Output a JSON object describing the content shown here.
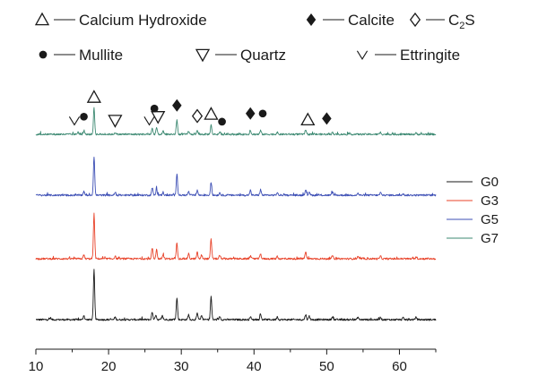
{
  "chart_data": {
    "type": "line",
    "title": "",
    "xlabel": "",
    "ylabel": "",
    "xlim": [
      10,
      65
    ],
    "x_ticks": [
      10,
      20,
      30,
      40,
      50,
      60
    ],
    "grid": false,
    "legend_placement": "right",
    "series": [
      {
        "name": "G0",
        "color": "#1a1a1a",
        "baseline": 0.0,
        "noise": 0.014,
        "peaks": [
          {
            "x": 12.0,
            "h": 0.03
          },
          {
            "x": 16.6,
            "h": 0.07
          },
          {
            "x": 18.0,
            "h": 0.8
          },
          {
            "x": 20.9,
            "h": 0.04
          },
          {
            "x": 26.0,
            "h": 0.12
          },
          {
            "x": 26.5,
            "h": 0.08
          },
          {
            "x": 27.4,
            "h": 0.06
          },
          {
            "x": 29.4,
            "h": 0.35
          },
          {
            "x": 31.0,
            "h": 0.08
          },
          {
            "x": 32.2,
            "h": 0.1
          },
          {
            "x": 32.8,
            "h": 0.07
          },
          {
            "x": 34.1,
            "h": 0.37
          },
          {
            "x": 35.3,
            "h": 0.05
          },
          {
            "x": 39.5,
            "h": 0.05
          },
          {
            "x": 40.9,
            "h": 0.08
          },
          {
            "x": 43.2,
            "h": 0.05
          },
          {
            "x": 47.1,
            "h": 0.08
          },
          {
            "x": 47.6,
            "h": 0.06
          },
          {
            "x": 50.8,
            "h": 0.05
          },
          {
            "x": 54.3,
            "h": 0.04
          },
          {
            "x": 57.4,
            "h": 0.04
          },
          {
            "x": 60.5,
            "h": 0.03
          },
          {
            "x": 62.3,
            "h": 0.04
          }
        ]
      },
      {
        "name": "G3",
        "color": "#e8432a",
        "baseline": 1.0,
        "noise": 0.014,
        "peaks": [
          {
            "x": 16.6,
            "h": 0.06
          },
          {
            "x": 18.0,
            "h": 0.72
          },
          {
            "x": 20.9,
            "h": 0.04
          },
          {
            "x": 26.0,
            "h": 0.17
          },
          {
            "x": 26.6,
            "h": 0.15
          },
          {
            "x": 27.5,
            "h": 0.07
          },
          {
            "x": 29.4,
            "h": 0.26
          },
          {
            "x": 31.0,
            "h": 0.08
          },
          {
            "x": 32.2,
            "h": 0.1
          },
          {
            "x": 32.8,
            "h": 0.06
          },
          {
            "x": 34.1,
            "h": 0.31
          },
          {
            "x": 35.3,
            "h": 0.05
          },
          {
            "x": 39.5,
            "h": 0.05
          },
          {
            "x": 40.9,
            "h": 0.08
          },
          {
            "x": 43.2,
            "h": 0.04
          },
          {
            "x": 47.1,
            "h": 0.11
          },
          {
            "x": 50.8,
            "h": 0.05
          },
          {
            "x": 54.3,
            "h": 0.03
          },
          {
            "x": 57.4,
            "h": 0.04
          },
          {
            "x": 62.3,
            "h": 0.03
          }
        ]
      },
      {
        "name": "G5",
        "color": "#3d4fb5",
        "baseline": 2.0,
        "noise": 0.014,
        "peaks": [
          {
            "x": 16.6,
            "h": 0.06
          },
          {
            "x": 18.0,
            "h": 0.62
          },
          {
            "x": 20.9,
            "h": 0.04
          },
          {
            "x": 26.0,
            "h": 0.12
          },
          {
            "x": 26.6,
            "h": 0.1
          },
          {
            "x": 27.5,
            "h": 0.05
          },
          {
            "x": 29.4,
            "h": 0.35
          },
          {
            "x": 31.0,
            "h": 0.06
          },
          {
            "x": 32.2,
            "h": 0.08
          },
          {
            "x": 34.1,
            "h": 0.2
          },
          {
            "x": 35.3,
            "h": 0.04
          },
          {
            "x": 39.5,
            "h": 0.08
          },
          {
            "x": 40.9,
            "h": 0.09
          },
          {
            "x": 43.2,
            "h": 0.04
          },
          {
            "x": 47.1,
            "h": 0.09
          },
          {
            "x": 47.6,
            "h": 0.06
          },
          {
            "x": 50.8,
            "h": 0.05
          },
          {
            "x": 54.3,
            "h": 0.03
          },
          {
            "x": 57.4,
            "h": 0.04
          },
          {
            "x": 60.5,
            "h": 0.03
          }
        ]
      },
      {
        "name": "G7",
        "color": "#3e8a73",
        "baseline": 3.0,
        "noise": 0.014,
        "peaks": [
          {
            "x": 15.8,
            "h": 0.04
          },
          {
            "x": 16.6,
            "h": 0.05
          },
          {
            "x": 18.0,
            "h": 0.42
          },
          {
            "x": 20.9,
            "h": 0.03
          },
          {
            "x": 26.0,
            "h": 0.09
          },
          {
            "x": 26.6,
            "h": 0.11
          },
          {
            "x": 27.5,
            "h": 0.05
          },
          {
            "x": 29.4,
            "h": 0.23
          },
          {
            "x": 31.0,
            "h": 0.05
          },
          {
            "x": 32.2,
            "h": 0.06
          },
          {
            "x": 34.1,
            "h": 0.15
          },
          {
            "x": 35.3,
            "h": 0.04
          },
          {
            "x": 39.5,
            "h": 0.07
          },
          {
            "x": 40.9,
            "h": 0.06
          },
          {
            "x": 43.2,
            "h": 0.03
          },
          {
            "x": 47.1,
            "h": 0.06
          },
          {
            "x": 50.8,
            "h": 0.03
          },
          {
            "x": 57.4,
            "h": 0.03
          },
          {
            "x": 62.3,
            "h": 0.02
          }
        ]
      }
    ],
    "phase_legend": [
      {
        "symbol": "triangle-up-open",
        "label": "Calcium Hydroxide"
      },
      {
        "symbol": "diamond-filled",
        "label": "Calcite"
      },
      {
        "symbol": "diamond-open",
        "label": "C",
        "subscript": "2",
        "suffix": "S"
      },
      {
        "symbol": "circle-filled",
        "label": "Mullite"
      },
      {
        "symbol": "triangle-down-open",
        "label": "Quartz"
      },
      {
        "symbol": "check-v",
        "label": "Ettringite"
      }
    ],
    "annotations": [
      {
        "symbol": "check-v",
        "x": 15.3,
        "h": 0.05
      },
      {
        "symbol": "circle-filled",
        "x": 16.6,
        "h": 0.11
      },
      {
        "symbol": "triangle-up-open",
        "x": 18.0,
        "h": 0.42
      },
      {
        "symbol": "triangle-down-open",
        "x": 20.9,
        "h": 0.05
      },
      {
        "symbol": "check-v",
        "x": 25.6,
        "h": 0.05
      },
      {
        "symbol": "circle-filled",
        "x": 26.3,
        "h": 0.24
      },
      {
        "symbol": "triangle-down-open",
        "x": 26.8,
        "h": 0.11
      },
      {
        "symbol": "diamond-filled",
        "x": 29.4,
        "h": 0.29
      },
      {
        "symbol": "diamond-open",
        "x": 32.2,
        "h": 0.12
      },
      {
        "symbol": "triangle-up-open",
        "x": 34.1,
        "h": 0.15
      },
      {
        "symbol": "circle-filled",
        "x": 35.6,
        "h": 0.03
      },
      {
        "symbol": "diamond-filled",
        "x": 39.5,
        "h": 0.16
      },
      {
        "symbol": "circle-filled",
        "x": 41.2,
        "h": 0.16
      },
      {
        "symbol": "triangle-up-open",
        "x": 47.4,
        "h": 0.06
      },
      {
        "symbol": "diamond-filled",
        "x": 50.0,
        "h": 0.08
      }
    ]
  }
}
